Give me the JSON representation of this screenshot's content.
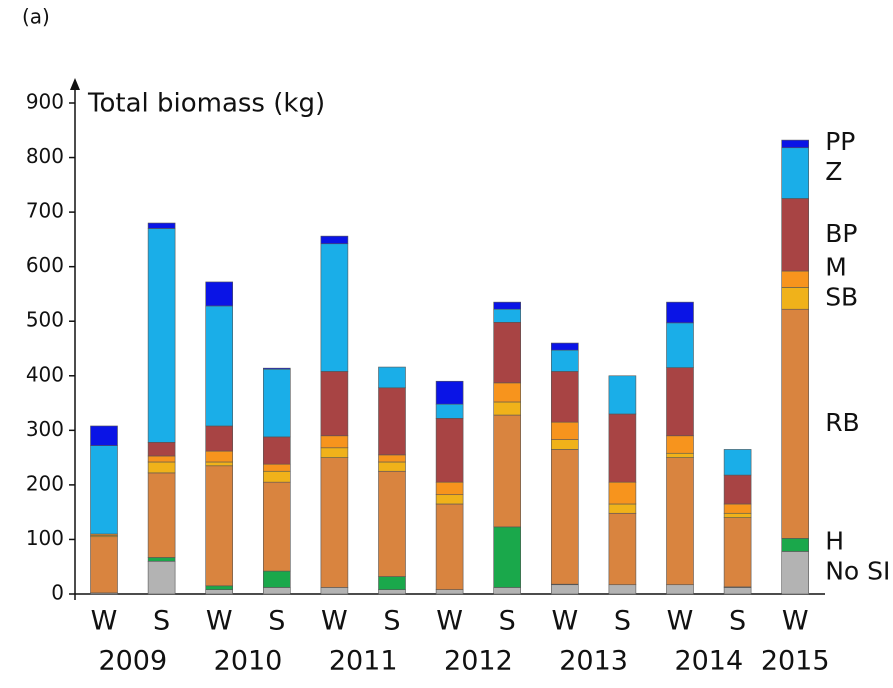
{
  "panel_label": "(a)",
  "chart_data": {
    "type": "stacked-bar",
    "y_label": "Total biomass (kg)",
    "categories": [
      "W",
      "S",
      "W",
      "S",
      "W",
      "S",
      "W",
      "S",
      "W",
      "S",
      "W",
      "S",
      "W"
    ],
    "years": [
      "2009",
      "2010",
      "2011",
      "2012",
      "2013",
      "2014",
      "2015"
    ],
    "ylim": [
      0,
      900
    ],
    "yticks": [
      0,
      100,
      200,
      300,
      400,
      500,
      600,
      700,
      800,
      900
    ],
    "series": [
      {
        "name": "No SI",
        "color": "#b3b3b3",
        "values": [
          2,
          60,
          8,
          12,
          12,
          8,
          8,
          12,
          17,
          17,
          17,
          12,
          78
        ]
      },
      {
        "name": "H",
        "color": "#1aa84b",
        "values": [
          0,
          7,
          7,
          30,
          0,
          24,
          0,
          111,
          1,
          0,
          0,
          1,
          24
        ]
      },
      {
        "name": "RB",
        "color": "#d9843f",
        "values": [
          103,
          155,
          220,
          163,
          238,
          193,
          157,
          205,
          247,
          131,
          233,
          127,
          420
        ]
      },
      {
        "name": "SB",
        "color": "#f0b21a",
        "values": [
          2,
          20,
          7,
          20,
          18,
          17,
          17,
          24,
          18,
          17,
          8,
          8,
          40
        ]
      },
      {
        "name": "M",
        "color": "#f7941d",
        "values": [
          3,
          11,
          20,
          13,
          22,
          13,
          23,
          35,
          32,
          40,
          32,
          17,
          30
        ]
      },
      {
        "name": "BP",
        "color": "#a84444",
        "values": [
          0,
          25,
          46,
          50,
          118,
          123,
          117,
          111,
          93,
          125,
          125,
          53,
          133
        ]
      },
      {
        "name": "Z",
        "color": "#1aaee8",
        "values": [
          162,
          392,
          220,
          124,
          234,
          38,
          26,
          24,
          39,
          70,
          82,
          47,
          93
        ]
      },
      {
        "name": "PP",
        "color": "#0a14e6",
        "values": [
          36,
          10,
          44,
          2,
          14,
          0,
          42,
          13,
          13,
          0,
          38,
          0,
          14
        ]
      }
    ]
  }
}
